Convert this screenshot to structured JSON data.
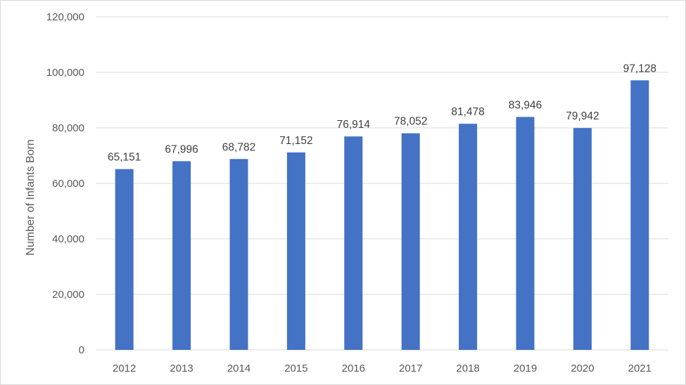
{
  "chart_data": {
    "type": "bar",
    "title": "",
    "xlabel": "",
    "ylabel": "Number of Infants Born",
    "categories": [
      "2012",
      "2013",
      "2014",
      "2015",
      "2016",
      "2017",
      "2018",
      "2019",
      "2020",
      "2021"
    ],
    "values": [
      65151,
      67996,
      68782,
      71152,
      76914,
      78052,
      81478,
      83946,
      79942,
      97128
    ],
    "data_labels": [
      "65,151",
      "67,996",
      "68,782",
      "71,152",
      "76,914",
      "78,052",
      "81,478",
      "83,946",
      "79,942",
      "97,128"
    ],
    "ylim": [
      0,
      120000
    ],
    "yticks": [
      0,
      20000,
      40000,
      60000,
      80000,
      100000,
      120000
    ],
    "ytick_labels": [
      "0",
      "20,000",
      "40,000",
      "60,000",
      "80,000",
      "100,000",
      "120,000"
    ],
    "grid": true,
    "legend": "none",
    "bar_color": "#4472C4",
    "grid_color": "#D9D9D9"
  }
}
